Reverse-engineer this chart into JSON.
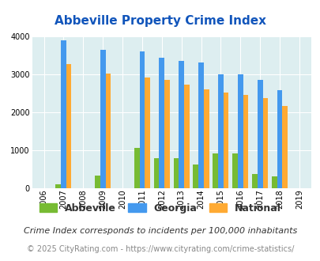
{
  "title": "Abbeville Property Crime Index",
  "years": [
    2006,
    2007,
    2008,
    2009,
    2010,
    2011,
    2012,
    2013,
    2014,
    2015,
    2016,
    2017,
    2018,
    2019
  ],
  "abbeville": [
    null,
    100,
    null,
    330,
    null,
    1060,
    780,
    780,
    610,
    920,
    920,
    360,
    310,
    null
  ],
  "georgia": [
    null,
    3900,
    null,
    3650,
    null,
    3610,
    3440,
    3360,
    3310,
    3010,
    3010,
    2860,
    2590,
    null
  ],
  "national": [
    null,
    3280,
    null,
    3030,
    null,
    2920,
    2850,
    2730,
    2600,
    2510,
    2460,
    2380,
    2170,
    null
  ],
  "abbeville_color": "#77bb33",
  "georgia_color": "#4499ee",
  "national_color": "#ffaa33",
  "bg_color": "#ddeef0",
  "ylim": [
    0,
    4000
  ],
  "yticks": [
    0,
    1000,
    2000,
    3000,
    4000
  ],
  "bar_width": 0.27,
  "legend_labels": [
    "Abbeville",
    "Georgia",
    "National"
  ],
  "footnote1": "Crime Index corresponds to incidents per 100,000 inhabitants",
  "footnote2": "© 2025 CityRating.com - https://www.cityrating.com/crime-statistics/",
  "title_color": "#1155bb",
  "footnote1_color": "#333333",
  "footnote2_color": "#888888",
  "title_fontsize": 11,
  "tick_fontsize": 7,
  "legend_fontsize": 9,
  "footnote1_fontsize": 8,
  "footnote2_fontsize": 7
}
